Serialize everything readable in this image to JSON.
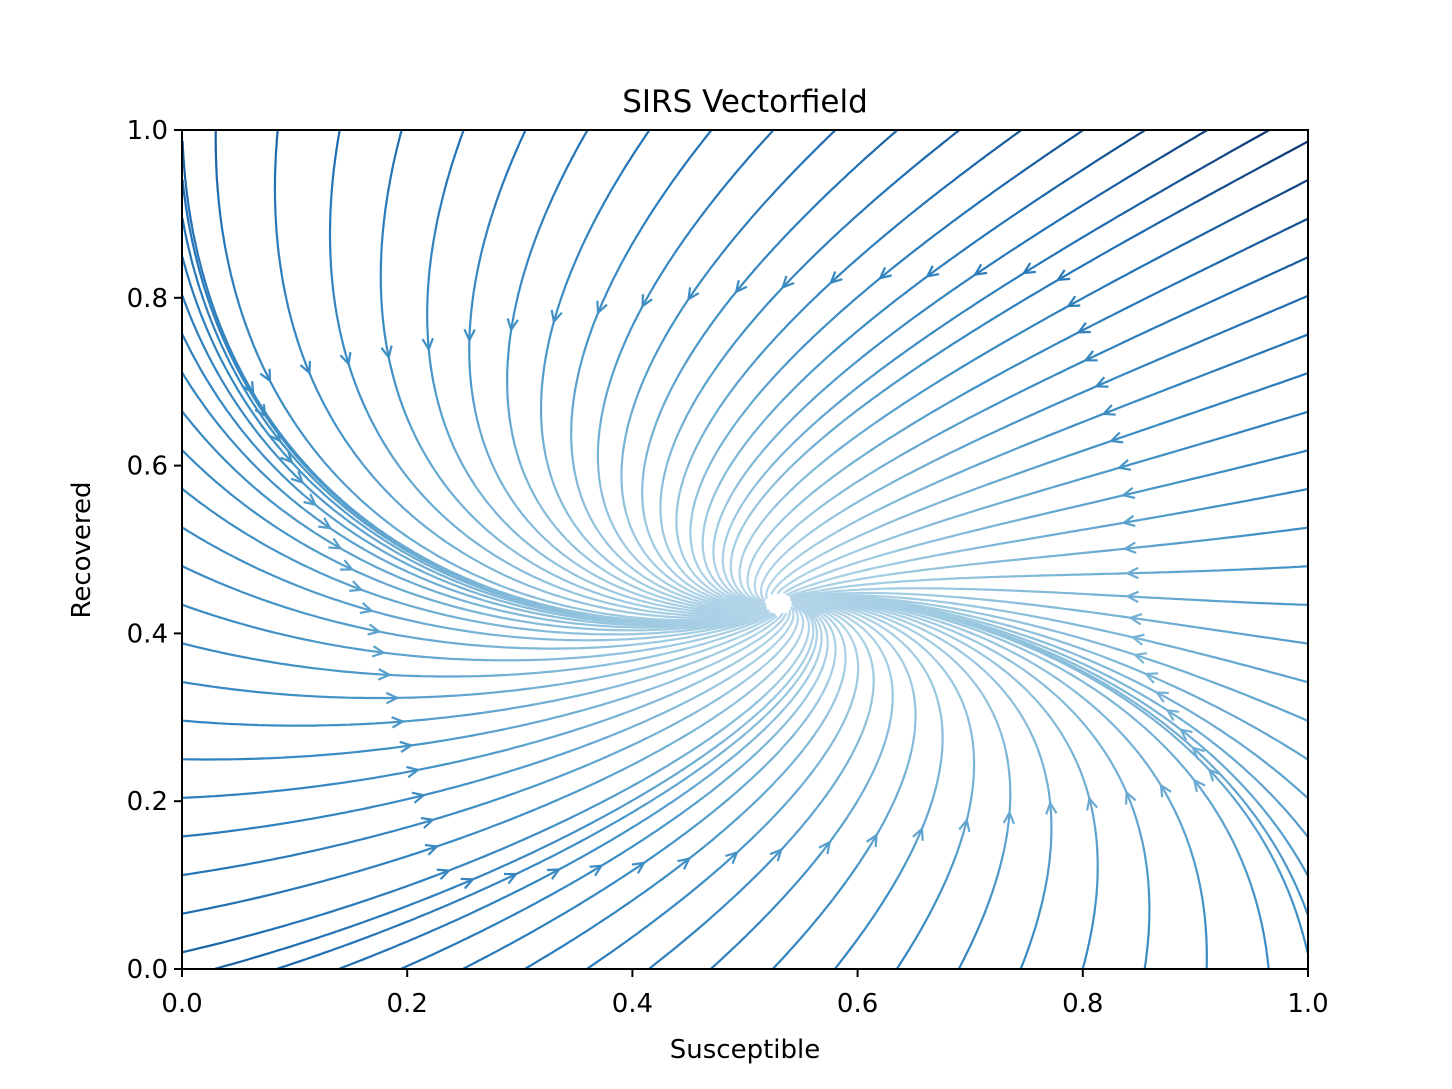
{
  "chart_data": {
    "type": "streamplot",
    "title": "SIRS Vectorfield",
    "xlabel": "Susceptible",
    "ylabel": "Recovered",
    "xlim": [
      0.0,
      1.0
    ],
    "ylim": [
      0.0,
      1.0
    ],
    "xticks": [
      "0.0",
      "0.2",
      "0.4",
      "0.6",
      "0.8",
      "1.0"
    ],
    "yticks": [
      "0.0",
      "0.2",
      "0.4",
      "0.6",
      "0.8",
      "1.0"
    ],
    "equilibrium": {
      "x": 0.53,
      "y": 0.435
    },
    "colormap": "Blues",
    "color_by": "speed",
    "grid": false,
    "legend": false,
    "colors": {
      "line_dark": "#08306b",
      "line_light": "#deebf7",
      "axis": "#000000"
    }
  }
}
